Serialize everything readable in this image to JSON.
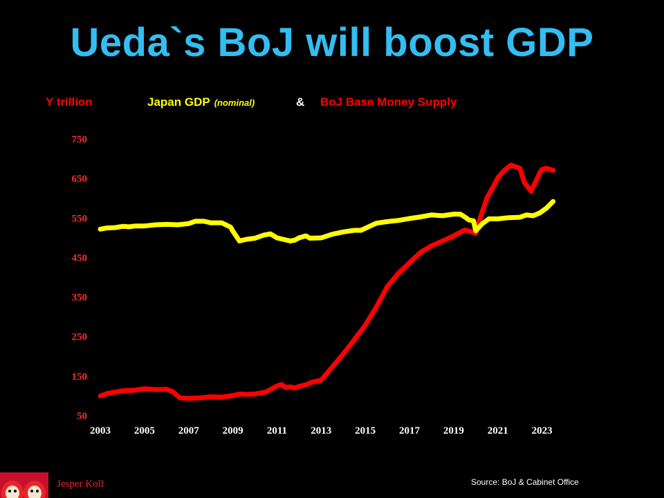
{
  "title": "Ueda`s BoJ will boost GDP",
  "legend": {
    "unit_label": "Y trillion",
    "gdp_label": "Japan GDP",
    "gdp_qualifier": "(nominal)",
    "ampersand": "&",
    "money_label": "BoJ Base Money Supply"
  },
  "source": "Source:  BoJ & Cabinet Office",
  "author": "Jesper Koll",
  "colors": {
    "title": "#33bdf2",
    "gdp": "#ffff00",
    "money": "#ff0000",
    "y_tick": "#ff2a2a",
    "x_tick": "#ffffff"
  },
  "chart_data": {
    "type": "line",
    "ylabel": "Y trillion",
    "ylim": [
      50,
      750
    ],
    "xlim": [
      2003,
      2023.9
    ],
    "y_ticks": [
      50,
      150,
      250,
      350,
      450,
      550,
      650,
      750
    ],
    "x_ticks": [
      2003,
      2005,
      2007,
      2009,
      2011,
      2013,
      2015,
      2017,
      2019,
      2021,
      2023
    ],
    "grid": false,
    "series": [
      {
        "name": "Japan GDP (nominal)",
        "color": "#ffff00",
        "x": [
          2003.0,
          2003.3,
          2003.7,
          2004.0,
          2004.3,
          2004.6,
          2005.0,
          2005.5,
          2006.0,
          2006.5,
          2007.0,
          2007.3,
          2007.7,
          2008.0,
          2008.5,
          2008.9,
          2009.0,
          2009.3,
          2009.6,
          2010.0,
          2010.4,
          2010.7,
          2011.0,
          2011.3,
          2011.6,
          2011.8,
          2012.0,
          2012.3,
          2012.5,
          2013.0,
          2013.5,
          2014.0,
          2014.5,
          2014.8,
          2015.0,
          2015.5,
          2016.0,
          2016.5,
          2017.0,
          2017.5,
          2018.0,
          2018.5,
          2019.0,
          2019.3,
          2019.5,
          2019.7,
          2019.9,
          2020.0,
          2020.3,
          2020.6,
          2021.0,
          2021.5,
          2022.0,
          2022.3,
          2022.6,
          2022.9,
          2023.2,
          2023.5
        ],
        "values": [
          522,
          525,
          526,
          529,
          528,
          530,
          530,
          533,
          534,
          533,
          536,
          542,
          542,
          538,
          538,
          527,
          517,
          492,
          496,
          499,
          507,
          510,
          500,
          496,
          492,
          494,
          500,
          505,
          499,
          500,
          509,
          515,
          519,
          519,
          524,
          537,
          541,
          544,
          549,
          553,
          558,
          556,
          560,
          560,
          553,
          545,
          543,
          518,
          536,
          548,
          548,
          551,
          552,
          558,
          556,
          563,
          575,
          592
        ]
      },
      {
        "name": "BoJ Base Money Supply",
        "color": "#ff0000",
        "x": [
          2003.0,
          2003.3,
          2003.6,
          2004.0,
          2004.5,
          2005.0,
          2005.5,
          2006.0,
          2006.3,
          2006.6,
          2007.0,
          2007.5,
          2008.0,
          2008.5,
          2009.0,
          2009.3,
          2009.6,
          2010.0,
          2010.5,
          2011.0,
          2011.2,
          2011.4,
          2011.6,
          2011.8,
          2012.0,
          2012.3,
          2012.6,
          2013.0,
          2013.5,
          2014.0,
          2014.5,
          2015.0,
          2015.5,
          2016.0,
          2016.5,
          2017.0,
          2017.5,
          2018.0,
          2018.5,
          2019.0,
          2019.5,
          2020.0,
          2020.2,
          2020.5,
          2020.8,
          2021.0,
          2021.3,
          2021.6,
          2022.0,
          2022.2,
          2022.5,
          2022.7,
          2022.9,
          2023.0,
          2023.2,
          2023.5
        ],
        "values": [
          100,
          106,
          109,
          113,
          114,
          118,
          116,
          117,
          110,
          95,
          94,
          95,
          98,
          97,
          101,
          105,
          104,
          105,
          110,
          125,
          129,
          121,
          123,
          120,
          124,
          128,
          135,
          140,
          173,
          206,
          242,
          279,
          325,
          377,
          410,
          437,
          463,
          480,
          492,
          505,
          520,
          512,
          550,
          600,
          630,
          652,
          671,
          684,
          676,
          640,
          618,
          640,
          664,
          673,
          676,
          671
        ]
      }
    ]
  }
}
